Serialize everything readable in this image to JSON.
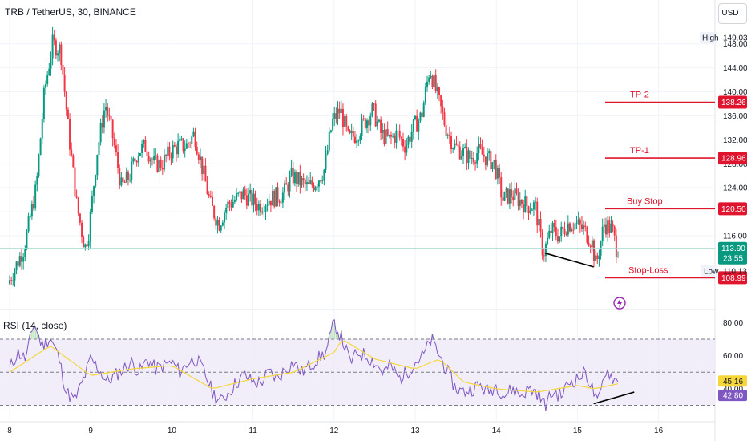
{
  "header": {
    "title": "TRB / TetherUS, 30, BINANCE",
    "currency": "USDT"
  },
  "rsi_panel": {
    "title": "RSI (14, close)"
  },
  "chart_data": [
    {
      "type": "candlestick",
      "xlabels": [
        "8",
        "9",
        "10",
        "11",
        "12",
        "13",
        "14",
        "15",
        "16"
      ],
      "y_ticks": [
        116,
        120,
        124,
        128,
        132,
        136,
        140,
        144,
        148
      ],
      "ylim": [
        104.5,
        150.5
      ],
      "high_label": "High",
      "high_value": "149.03",
      "low_label": "Low",
      "low_value": "110.13",
      "last_price": "113.90",
      "countdown": "23:55",
      "levels": [
        {
          "name": "TP-2",
          "value": 138.26,
          "label": "138.26"
        },
        {
          "name": "TP-1",
          "value": 128.96,
          "label": "128.96"
        },
        {
          "name": "Buy Stop",
          "value": 120.5,
          "label": "120.50"
        },
        {
          "name": "Stop-Loss",
          "value": 108.99,
          "label": "108.99"
        }
      ],
      "price_path": [
        [
          0,
          108
        ],
        [
          0.2,
          114
        ],
        [
          0.35,
          124
        ],
        [
          0.45,
          140
        ],
        [
          0.55,
          148
        ],
        [
          0.65,
          147
        ],
        [
          0.75,
          133
        ],
        [
          0.85,
          121
        ],
        [
          0.95,
          114
        ],
        [
          1.0,
          117
        ],
        [
          1.1,
          130
        ],
        [
          1.2,
          138
        ],
        [
          1.3,
          132
        ],
        [
          1.4,
          124
        ],
        [
          1.5,
          126
        ],
        [
          1.6,
          130
        ],
        [
          1.7,
          131
        ],
        [
          1.8,
          128
        ],
        [
          1.9,
          128
        ],
        [
          2.0,
          130
        ],
        [
          2.1,
          131
        ],
        [
          2.2,
          131
        ],
        [
          2.3,
          133
        ],
        [
          2.4,
          127
        ],
        [
          2.5,
          121
        ],
        [
          2.6,
          118
        ],
        [
          2.7,
          121
        ],
        [
          2.8,
          122
        ],
        [
          2.9,
          123
        ],
        [
          3.0,
          122
        ],
        [
          3.1,
          121
        ],
        [
          3.2,
          122
        ],
        [
          3.4,
          123
        ],
        [
          3.5,
          126
        ],
        [
          3.6,
          125
        ],
        [
          3.7,
          124
        ],
        [
          3.8,
          125
        ],
        [
          3.9,
          127
        ],
        [
          4.0,
          135
        ],
        [
          4.1,
          137
        ],
        [
          4.2,
          132
        ],
        [
          4.3,
          133
        ],
        [
          4.4,
          135
        ],
        [
          4.5,
          137
        ],
        [
          4.6,
          133
        ],
        [
          4.7,
          132
        ],
        [
          4.8,
          133
        ],
        [
          4.9,
          131
        ],
        [
          5.0,
          134
        ],
        [
          5.1,
          136
        ],
        [
          5.2,
          144
        ],
        [
          5.3,
          139
        ],
        [
          5.4,
          134
        ],
        [
          5.5,
          131
        ],
        [
          5.6,
          130
        ],
        [
          5.7,
          129
        ],
        [
          5.8,
          130
        ],
        [
          5.9,
          129
        ],
        [
          6.0,
          128
        ],
        [
          6.1,
          122
        ],
        [
          6.2,
          123
        ],
        [
          6.3,
          122
        ],
        [
          6.4,
          121
        ],
        [
          6.5,
          121
        ],
        [
          6.6,
          113
        ],
        [
          6.7,
          117
        ],
        [
          6.8,
          116
        ],
        [
          6.9,
          118
        ],
        [
          7.0,
          118
        ],
        [
          7.1,
          117
        ],
        [
          7.2,
          115
        ],
        [
          7.25,
          111
        ],
        [
          7.35,
          118
        ],
        [
          7.45,
          117
        ],
        [
          7.5,
          114
        ]
      ]
    },
    {
      "type": "line",
      "series_name": "RSI (14, close)",
      "y_ticks": [
        40,
        60,
        80
      ],
      "ylim": [
        23,
        86
      ],
      "upper_band": 70,
      "lower_band": 30,
      "middle_band": 50,
      "rsi_label": "45.16",
      "ma_label": "42.80",
      "rsi_path": [
        [
          0,
          52
        ],
        [
          0.1,
          62
        ],
        [
          0.2,
          58
        ],
        [
          0.3,
          80
        ],
        [
          0.4,
          66
        ],
        [
          0.5,
          71
        ],
        [
          0.6,
          60
        ],
        [
          0.7,
          38
        ],
        [
          0.8,
          33
        ],
        [
          0.9,
          44
        ],
        [
          1.0,
          58
        ],
        [
          1.1,
          52
        ],
        [
          1.2,
          44
        ],
        [
          1.3,
          48
        ],
        [
          1.4,
          52
        ],
        [
          1.5,
          56
        ],
        [
          1.6,
          50
        ],
        [
          1.7,
          58
        ],
        [
          1.8,
          52
        ],
        [
          1.9,
          54
        ],
        [
          2.0,
          56
        ],
        [
          2.1,
          50
        ],
        [
          2.2,
          56
        ],
        [
          2.3,
          58
        ],
        [
          2.4,
          50
        ],
        [
          2.5,
          38
        ],
        [
          2.6,
          32
        ],
        [
          2.7,
          38
        ],
        [
          2.8,
          44
        ],
        [
          2.9,
          48
        ],
        [
          3.0,
          44
        ],
        [
          3.1,
          44
        ],
        [
          3.2,
          50
        ],
        [
          3.3,
          46
        ],
        [
          3.4,
          52
        ],
        [
          3.5,
          56
        ],
        [
          3.6,
          50
        ],
        [
          3.7,
          54
        ],
        [
          3.8,
          58
        ],
        [
          3.9,
          62
        ],
        [
          4.0,
          80
        ],
        [
          4.1,
          70
        ],
        [
          4.2,
          56
        ],
        [
          4.3,
          62
        ],
        [
          4.4,
          60
        ],
        [
          4.5,
          56
        ],
        [
          4.6,
          50
        ],
        [
          4.7,
          54
        ],
        [
          4.8,
          46
        ],
        [
          4.9,
          50
        ],
        [
          5.0,
          56
        ],
        [
          5.1,
          60
        ],
        [
          5.2,
          70
        ],
        [
          5.3,
          60
        ],
        [
          5.4,
          50
        ],
        [
          5.5,
          40
        ],
        [
          5.6,
          38
        ],
        [
          5.7,
          40
        ],
        [
          5.8,
          42
        ],
        [
          5.9,
          38
        ],
        [
          6.0,
          42
        ],
        [
          6.1,
          36
        ],
        [
          6.2,
          40
        ],
        [
          6.3,
          36
        ],
        [
          6.4,
          40
        ],
        [
          6.5,
          38
        ],
        [
          6.6,
          30
        ],
        [
          6.7,
          38
        ],
        [
          6.8,
          36
        ],
        [
          6.9,
          44
        ],
        [
          7.0,
          46
        ],
        [
          7.1,
          50
        ],
        [
          7.2,
          38
        ],
        [
          7.25,
          30
        ],
        [
          7.35,
          52
        ],
        [
          7.45,
          46
        ],
        [
          7.5,
          44
        ]
      ],
      "ma_path": [
        [
          0,
          50
        ],
        [
          0.5,
          66
        ],
        [
          1.0,
          48
        ],
        [
          1.5,
          52
        ],
        [
          2.0,
          54
        ],
        [
          2.5,
          40
        ],
        [
          3.0,
          46
        ],
        [
          3.5,
          50
        ],
        [
          4.0,
          62
        ],
        [
          4.1,
          70
        ],
        [
          4.5,
          58
        ],
        [
          5.0,
          52
        ],
        [
          5.3,
          58
        ],
        [
          5.6,
          44
        ],
        [
          6.0,
          40
        ],
        [
          6.5,
          38
        ],
        [
          7.0,
          42
        ],
        [
          7.2,
          40
        ],
        [
          7.5,
          43
        ]
      ]
    }
  ],
  "colors": {
    "up": "#089981",
    "down": "#f23645",
    "level": "#e0142c",
    "rsi": "#7e57c2",
    "rsi_ma": "#f5d63b"
  }
}
